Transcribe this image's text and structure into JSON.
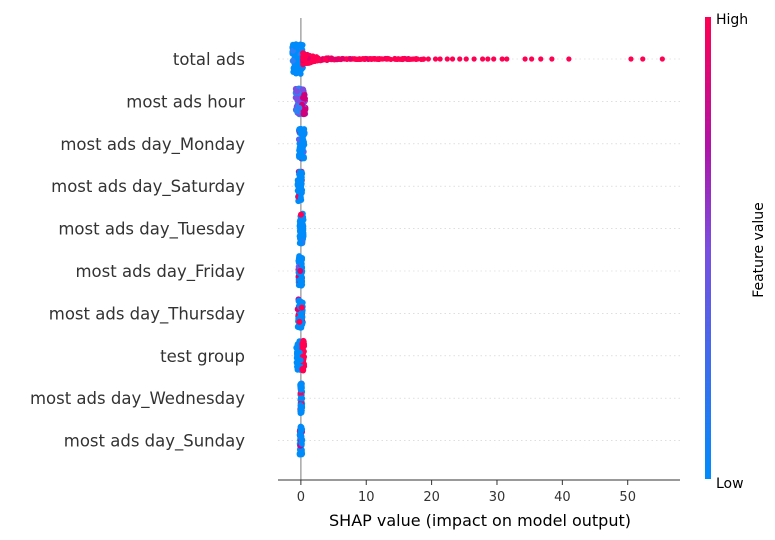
{
  "chart_data": {
    "type": "scatter",
    "subtype": "shap_beeswarm_summary",
    "xlabel": "SHAP value (impact on model output)",
    "xlim": [
      -3.5,
      58
    ],
    "xticks": [
      0,
      10,
      20,
      30,
      40,
      50
    ],
    "colorbar": {
      "label": "Feature value",
      "high_label": "High",
      "low_label": "Low",
      "high_color": "#ff0052",
      "low_color": "#008bfb"
    },
    "features": [
      {
        "name": "total ads",
        "range": [
          -1.3,
          55.5
        ],
        "low_range": [
          -1.3,
          0.3
        ],
        "high_points": [
          50.5,
          52.3,
          55.3,
          41.0,
          38.4,
          36.7,
          35.3,
          34.3,
          31.5,
          30.8,
          29.5,
          28.6,
          27.8,
          26.5,
          25.3,
          24.3,
          23.2,
          22.4,
          21.3,
          20.6,
          19.5,
          18.8
        ]
      },
      {
        "name": "most ads hour",
        "range": [
          -0.8,
          0.7
        ]
      },
      {
        "name": "most ads day_Monday",
        "range": [
          -0.3,
          0.6
        ]
      },
      {
        "name": "most ads day_Saturday",
        "range": [
          -0.5,
          0.2
        ]
      },
      {
        "name": "most ads day_Tuesday",
        "range": [
          -0.2,
          0.4
        ]
      },
      {
        "name": "most ads day_Friday",
        "range": [
          -0.4,
          0.2
        ]
      },
      {
        "name": "most ads day_Thursday",
        "range": [
          -0.5,
          0.3
        ]
      },
      {
        "name": "test group",
        "range": [
          -0.7,
          0.5
        ]
      },
      {
        "name": "most ads day_Wednesday",
        "range": [
          -0.1,
          0.2
        ]
      },
      {
        "name": "most ads day_Sunday",
        "range": [
          -0.2,
          0.2
        ]
      }
    ]
  }
}
